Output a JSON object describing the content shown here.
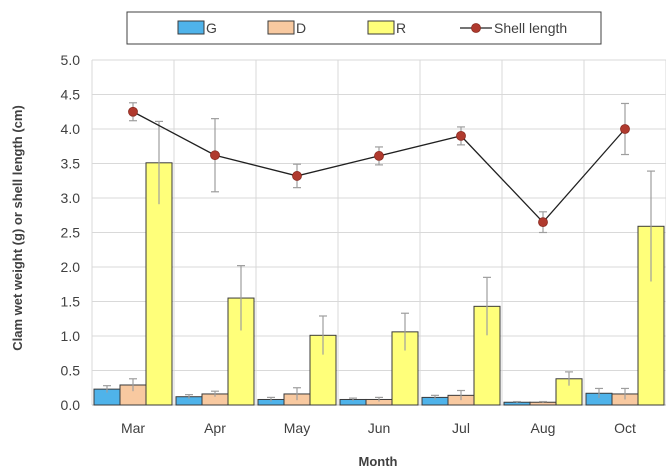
{
  "chart_data": {
    "type": "bar",
    "categories": [
      "Mar",
      "Apr",
      "May",
      "Jun",
      "Jul",
      "Aug",
      "Oct"
    ],
    "xlabel": "Month",
    "ylabel": "Clam wet weight (g) or shell length (cm)",
    "ylim": [
      0,
      5.0
    ],
    "yticks": [
      "0.0",
      "0.5",
      "1.0",
      "1.5",
      "2.0",
      "2.5",
      "3.0",
      "3.5",
      "4.0",
      "4.5",
      "5.0"
    ],
    "grid": true,
    "legend_position": "top",
    "series": [
      {
        "name": "G",
        "kind": "bar",
        "color": "#4fb3ea",
        "values": [
          0.23,
          0.12,
          0.08,
          0.08,
          0.11,
          0.04,
          0.17
        ],
        "errors": [
          0.05,
          0.03,
          0.03,
          0.02,
          0.03,
          0.01,
          0.07
        ]
      },
      {
        "name": "D",
        "kind": "bar",
        "color": "#f8c9a0",
        "values": [
          0.29,
          0.16,
          0.16,
          0.08,
          0.14,
          0.04,
          0.16
        ],
        "errors": [
          0.09,
          0.04,
          0.09,
          0.03,
          0.07,
          0.01,
          0.08
        ]
      },
      {
        "name": "R",
        "kind": "bar",
        "color": "#ffff7a",
        "values": [
          3.51,
          1.55,
          1.01,
          1.06,
          1.43,
          0.38,
          2.59
        ],
        "errors": [
          0.6,
          0.47,
          0.28,
          0.27,
          0.42,
          0.1,
          0.8
        ]
      },
      {
        "name": "Shell length",
        "kind": "line",
        "color": "#b03a2e",
        "line_color": "#202020",
        "values": [
          4.25,
          3.62,
          3.32,
          3.61,
          3.9,
          2.65,
          4.0
        ],
        "errors": [
          0.13,
          0.53,
          0.17,
          0.13,
          0.13,
          0.15,
          0.37
        ]
      }
    ]
  }
}
